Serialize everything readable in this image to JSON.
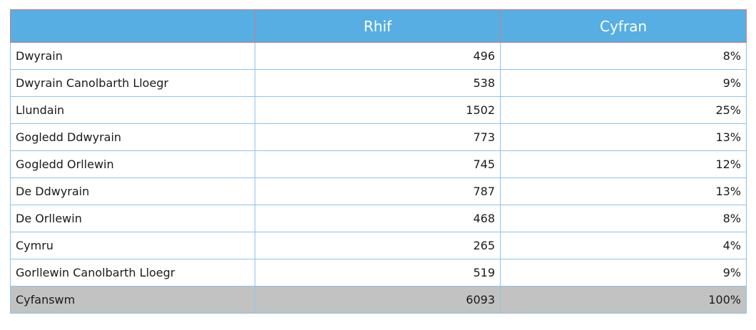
{
  "table": {
    "headers": [
      "",
      "Rhif",
      "Cyfran"
    ],
    "rows": [
      {
        "region": "Dwyrain",
        "number": "496",
        "share": "8%"
      },
      {
        "region": "Dwyrain Canolbarth Lloegr",
        "number": "538",
        "share": "9%"
      },
      {
        "region": "Llundain",
        "number": "1502",
        "share": "25%"
      },
      {
        "region": "Gogledd Ddwyrain",
        "number": "773",
        "share": "13%"
      },
      {
        "region": "Gogledd Orllewin",
        "number": "745",
        "share": "12%"
      },
      {
        "region": "De Ddwyrain",
        "number": "787",
        "share": "13%"
      },
      {
        "region": "De Orllewin",
        "number": "468",
        "share": "8%"
      },
      {
        "region": "Cymru",
        "number": "265",
        "share": "4%"
      },
      {
        "region": "Gorllewin Canolbarth Lloegr",
        "number": "519",
        "share": "9%"
      }
    ],
    "total": {
      "region": "Cyfanswm",
      "number": "6093",
      "share": "100%"
    }
  },
  "colors": {
    "header_bg": "#57aee2",
    "header_text": "#ffffff",
    "total_bg": "#c1c2c1",
    "cell_border": "#8cc4ea"
  }
}
